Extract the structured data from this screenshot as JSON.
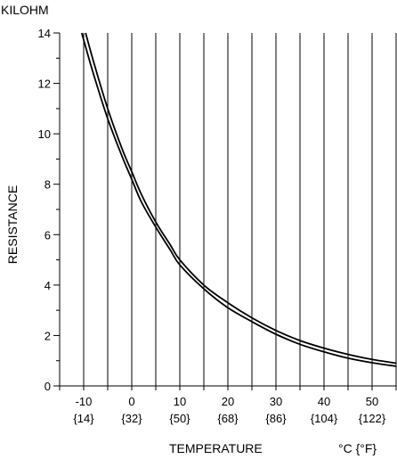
{
  "chart_data": {
    "type": "line",
    "title": "",
    "ylabel": "RESISTANCE",
    "y_unit_label": "KILOHM",
    "xlabel": "TEMPERATURE",
    "x_unit_label": "°C {°F}",
    "xlim": [
      -15,
      55
    ],
    "ylim": [
      0,
      14
    ],
    "grid": true,
    "legend": "none",
    "x_ticks": [
      {
        "value": -10,
        "celsius": "-10",
        "fahrenheit": "{14}"
      },
      {
        "value": 0,
        "celsius": "0",
        "fahrenheit": "{32}"
      },
      {
        "value": 10,
        "celsius": "10",
        "fahrenheit": "{50}"
      },
      {
        "value": 20,
        "celsius": "20",
        "fahrenheit": "{68}"
      },
      {
        "value": 30,
        "celsius": "30",
        "fahrenheit": "{86}"
      },
      {
        "value": 40,
        "celsius": "40",
        "fahrenheit": "{104}"
      },
      {
        "value": 50,
        "celsius": "50",
        "fahrenheit": "{122}"
      }
    ],
    "y_ticks": [
      0,
      2,
      4,
      6,
      8,
      10,
      12,
      14
    ],
    "series": [
      {
        "x": [
          -9.6,
          -8,
          -5,
          -2,
          0,
          2,
          5,
          8,
          10,
          15,
          20,
          25,
          30,
          35,
          40,
          45,
          50,
          55
        ],
        "y": [
          14.0,
          12.9,
          11.0,
          9.4,
          8.5,
          7.6,
          6.5,
          5.6,
          5.0,
          4.0,
          3.3,
          2.7,
          2.2,
          1.8,
          1.5,
          1.25,
          1.05,
          0.9
        ]
      },
      {
        "x": [
          -10.4,
          -8,
          -5,
          -2,
          0,
          2,
          5,
          8,
          10,
          15,
          20,
          25,
          30,
          35,
          40,
          45,
          50,
          55
        ],
        "y": [
          14.0,
          12.4,
          10.6,
          9.1,
          8.2,
          7.3,
          6.3,
          5.4,
          4.8,
          3.85,
          3.1,
          2.55,
          2.05,
          1.65,
          1.35,
          1.1,
          0.92,
          0.78
        ]
      }
    ]
  }
}
